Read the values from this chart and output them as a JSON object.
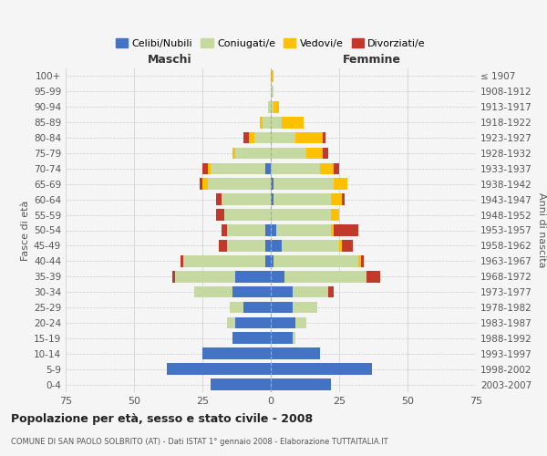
{
  "age_groups": [
    "0-4",
    "5-9",
    "10-14",
    "15-19",
    "20-24",
    "25-29",
    "30-34",
    "35-39",
    "40-44",
    "45-49",
    "50-54",
    "55-59",
    "60-64",
    "65-69",
    "70-74",
    "75-79",
    "80-84",
    "85-89",
    "90-94",
    "95-99",
    "100+"
  ],
  "birth_years": [
    "2003-2007",
    "1998-2002",
    "1993-1997",
    "1988-1992",
    "1983-1987",
    "1978-1982",
    "1973-1977",
    "1968-1972",
    "1963-1967",
    "1958-1962",
    "1953-1957",
    "1948-1952",
    "1943-1947",
    "1938-1942",
    "1933-1937",
    "1928-1932",
    "1923-1927",
    "1918-1922",
    "1913-1917",
    "1908-1912",
    "≤ 1907"
  ],
  "male": {
    "celibe": [
      22,
      38,
      25,
      14,
      13,
      10,
      14,
      13,
      2,
      2,
      2,
      0,
      0,
      0,
      2,
      0,
      0,
      0,
      0,
      0,
      0
    ],
    "coniugato": [
      0,
      0,
      0,
      0,
      3,
      5,
      14,
      22,
      30,
      14,
      14,
      17,
      18,
      23,
      20,
      13,
      6,
      3,
      1,
      0,
      0
    ],
    "vedovo": [
      0,
      0,
      0,
      0,
      0,
      0,
      0,
      0,
      0,
      0,
      0,
      0,
      0,
      2,
      1,
      1,
      2,
      1,
      0,
      0,
      0
    ],
    "divorziato": [
      0,
      0,
      0,
      0,
      0,
      0,
      0,
      1,
      1,
      3,
      2,
      3,
      2,
      1,
      2,
      0,
      2,
      0,
      0,
      0,
      0
    ]
  },
  "female": {
    "nubile": [
      22,
      37,
      18,
      8,
      9,
      8,
      8,
      5,
      1,
      4,
      2,
      0,
      1,
      1,
      0,
      0,
      0,
      0,
      0,
      0,
      0
    ],
    "coniugata": [
      0,
      0,
      0,
      1,
      4,
      9,
      13,
      30,
      31,
      21,
      20,
      22,
      21,
      22,
      18,
      13,
      9,
      4,
      1,
      1,
      0
    ],
    "vedova": [
      0,
      0,
      0,
      0,
      0,
      0,
      0,
      0,
      1,
      1,
      1,
      3,
      4,
      5,
      5,
      6,
      10,
      8,
      2,
      0,
      1
    ],
    "divorziata": [
      0,
      0,
      0,
      0,
      0,
      0,
      2,
      5,
      1,
      4,
      9,
      0,
      1,
      0,
      2,
      2,
      1,
      0,
      0,
      0,
      0
    ]
  },
  "colors": {
    "celibe": "#4472c4",
    "coniugato": "#c5d9a0",
    "vedovo": "#ffc000",
    "divorziato": "#c0392b"
  },
  "title": "Popolazione per età, sesso e stato civile - 2008",
  "subtitle": "COMUNE DI SAN PAOLO SOLBRITO (AT) - Dati ISTAT 1° gennaio 2008 - Elaborazione TUTTAITALIA.IT",
  "xlabel_left": "Maschi",
  "xlabel_right": "Femmine",
  "ylabel_left": "Fasce di età",
  "ylabel_right": "Anni di nascita",
  "xlim": 75,
  "background_color": "#f5f5f5",
  "grid_color": "#cccccc"
}
